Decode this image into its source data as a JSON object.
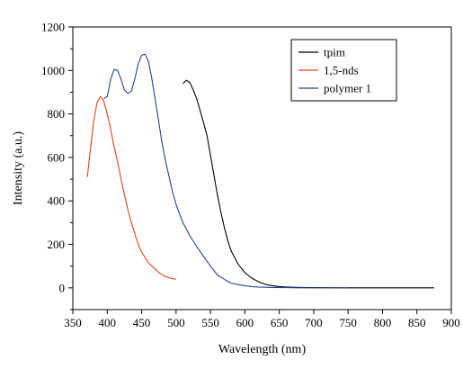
{
  "chart_data": {
    "type": "line",
    "title": "",
    "xlabel": "Wavelength (nm)",
    "ylabel": "Intensity (a.u.)",
    "xlim": [
      350,
      900
    ],
    "ylim": [
      -100,
      1200
    ],
    "xticks": [
      350,
      400,
      450,
      500,
      550,
      600,
      650,
      700,
      750,
      800,
      850,
      900
    ],
    "yticks": [
      0,
      200,
      400,
      600,
      800,
      1000,
      1200
    ],
    "grid": false,
    "legend_position": "top-right",
    "series": [
      {
        "name": "tpim",
        "color": "#000000",
        "x": [
          510,
          515,
          520,
          525,
          530,
          535,
          540,
          545,
          550,
          555,
          560,
          565,
          570,
          575,
          580,
          590,
          600,
          610,
          620,
          630,
          640,
          650,
          660,
          680,
          700,
          750,
          800,
          850,
          875
        ],
        "y": [
          940,
          955,
          945,
          910,
          870,
          815,
          760,
          700,
          610,
          520,
          430,
          350,
          280,
          220,
          170,
          110,
          70,
          45,
          28,
          16,
          10,
          6,
          4,
          2,
          1,
          0,
          0,
          0,
          0
        ]
      },
      {
        "name": "1,5-nds",
        "color": "#e8401c",
        "x": [
          371,
          375,
          380,
          385,
          390,
          395,
          400,
          405,
          410,
          415,
          420,
          425,
          430,
          435,
          440,
          445,
          450,
          455,
          460,
          465,
          470,
          475,
          480,
          485,
          490,
          495,
          500
        ],
        "y": [
          510,
          620,
          760,
          850,
          880,
          860,
          800,
          730,
          650,
          580,
          500,
          430,
          360,
          300,
          250,
          200,
          165,
          140,
          115,
          100,
          85,
          70,
          60,
          52,
          46,
          42,
          40
        ]
      },
      {
        "name": "polymer 1",
        "color": "#2a3f8f",
        "x": [
          395,
          400,
          405,
          410,
          415,
          420,
          425,
          430,
          435,
          440,
          445,
          450,
          455,
          460,
          465,
          470,
          475,
          480,
          485,
          490,
          495,
          500,
          505,
          510,
          520,
          530,
          540,
          550,
          560,
          570,
          575,
          580,
          590,
          600,
          610,
          620,
          640,
          660,
          680,
          700,
          750
        ],
        "y": [
          870,
          880,
          960,
          1005,
          1000,
          960,
          910,
          895,
          905,
          960,
          1030,
          1070,
          1075,
          1040,
          960,
          860,
          760,
          660,
          580,
          510,
          440,
          385,
          340,
          300,
          240,
          190,
          145,
          100,
          60,
          40,
          30,
          22,
          15,
          10,
          6,
          4,
          2,
          1,
          0,
          0,
          0
        ]
      }
    ]
  }
}
